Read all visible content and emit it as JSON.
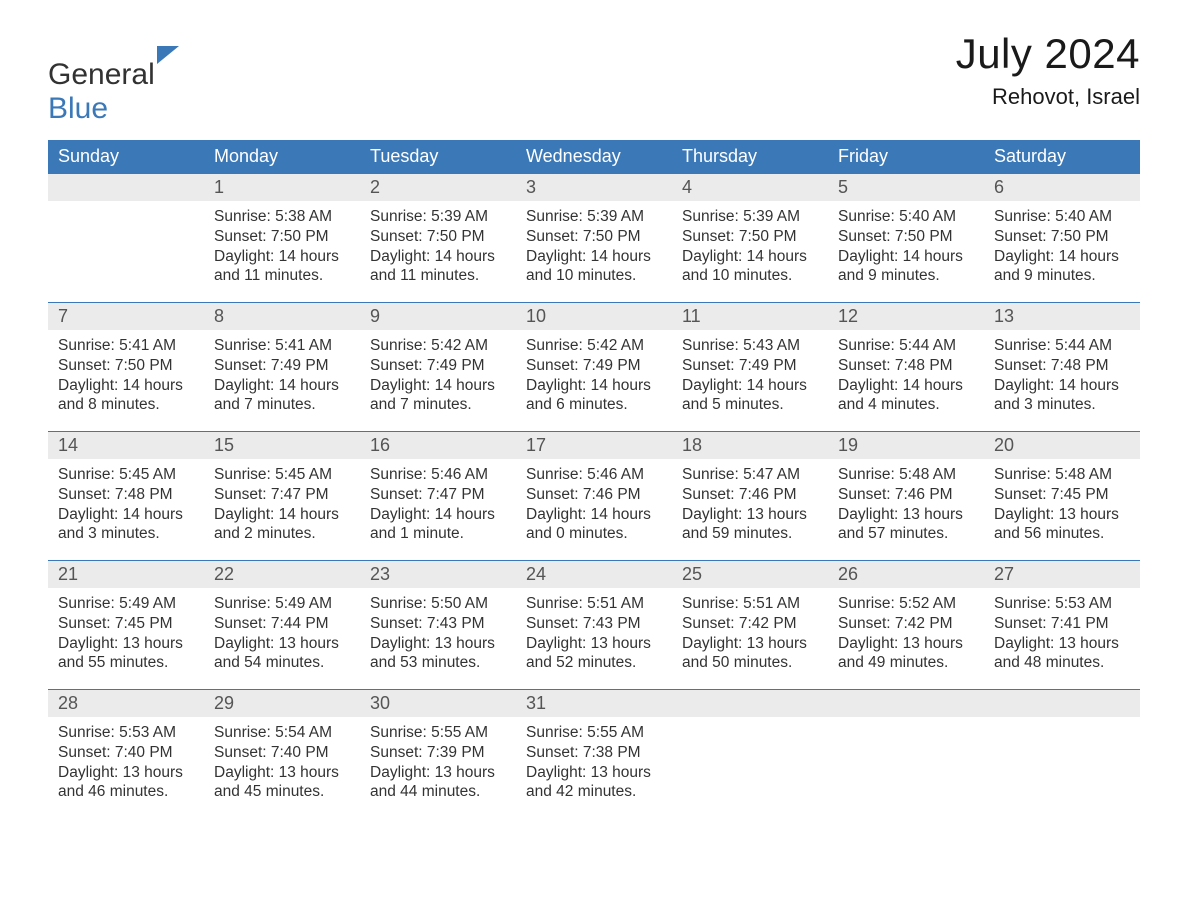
{
  "brand": {
    "text1": "General",
    "text2": "Blue"
  },
  "title": "July 2024",
  "location": "Rehovot, Israel",
  "colors": {
    "header_bg": "#3b78b8",
    "header_fg": "#ffffff",
    "daynum_bg": "#ebebeb",
    "daynum_fg": "#555555",
    "body_fg": "#333333",
    "rule": "#3b78b8",
    "page_bg": "#ffffff"
  },
  "weekdays": [
    "Sunday",
    "Monday",
    "Tuesday",
    "Wednesday",
    "Thursday",
    "Friday",
    "Saturday"
  ],
  "weeks": [
    [
      {
        "num": "",
        "sunrise": "",
        "sunset": "",
        "daylight1": "",
        "daylight2": ""
      },
      {
        "num": "1",
        "sunrise": "Sunrise: 5:38 AM",
        "sunset": "Sunset: 7:50 PM",
        "daylight1": "Daylight: 14 hours",
        "daylight2": "and 11 minutes."
      },
      {
        "num": "2",
        "sunrise": "Sunrise: 5:39 AM",
        "sunset": "Sunset: 7:50 PM",
        "daylight1": "Daylight: 14 hours",
        "daylight2": "and 11 minutes."
      },
      {
        "num": "3",
        "sunrise": "Sunrise: 5:39 AM",
        "sunset": "Sunset: 7:50 PM",
        "daylight1": "Daylight: 14 hours",
        "daylight2": "and 10 minutes."
      },
      {
        "num": "4",
        "sunrise": "Sunrise: 5:39 AM",
        "sunset": "Sunset: 7:50 PM",
        "daylight1": "Daylight: 14 hours",
        "daylight2": "and 10 minutes."
      },
      {
        "num": "5",
        "sunrise": "Sunrise: 5:40 AM",
        "sunset": "Sunset: 7:50 PM",
        "daylight1": "Daylight: 14 hours",
        "daylight2": "and 9 minutes."
      },
      {
        "num": "6",
        "sunrise": "Sunrise: 5:40 AM",
        "sunset": "Sunset: 7:50 PM",
        "daylight1": "Daylight: 14 hours",
        "daylight2": "and 9 minutes."
      }
    ],
    [
      {
        "num": "7",
        "sunrise": "Sunrise: 5:41 AM",
        "sunset": "Sunset: 7:50 PM",
        "daylight1": "Daylight: 14 hours",
        "daylight2": "and 8 minutes."
      },
      {
        "num": "8",
        "sunrise": "Sunrise: 5:41 AM",
        "sunset": "Sunset: 7:49 PM",
        "daylight1": "Daylight: 14 hours",
        "daylight2": "and 7 minutes."
      },
      {
        "num": "9",
        "sunrise": "Sunrise: 5:42 AM",
        "sunset": "Sunset: 7:49 PM",
        "daylight1": "Daylight: 14 hours",
        "daylight2": "and 7 minutes."
      },
      {
        "num": "10",
        "sunrise": "Sunrise: 5:42 AM",
        "sunset": "Sunset: 7:49 PM",
        "daylight1": "Daylight: 14 hours",
        "daylight2": "and 6 minutes."
      },
      {
        "num": "11",
        "sunrise": "Sunrise: 5:43 AM",
        "sunset": "Sunset: 7:49 PM",
        "daylight1": "Daylight: 14 hours",
        "daylight2": "and 5 minutes."
      },
      {
        "num": "12",
        "sunrise": "Sunrise: 5:44 AM",
        "sunset": "Sunset: 7:48 PM",
        "daylight1": "Daylight: 14 hours",
        "daylight2": "and 4 minutes."
      },
      {
        "num": "13",
        "sunrise": "Sunrise: 5:44 AM",
        "sunset": "Sunset: 7:48 PM",
        "daylight1": "Daylight: 14 hours",
        "daylight2": "and 3 minutes."
      }
    ],
    [
      {
        "num": "14",
        "sunrise": "Sunrise: 5:45 AM",
        "sunset": "Sunset: 7:48 PM",
        "daylight1": "Daylight: 14 hours",
        "daylight2": "and 3 minutes."
      },
      {
        "num": "15",
        "sunrise": "Sunrise: 5:45 AM",
        "sunset": "Sunset: 7:47 PM",
        "daylight1": "Daylight: 14 hours",
        "daylight2": "and 2 minutes."
      },
      {
        "num": "16",
        "sunrise": "Sunrise: 5:46 AM",
        "sunset": "Sunset: 7:47 PM",
        "daylight1": "Daylight: 14 hours",
        "daylight2": "and 1 minute."
      },
      {
        "num": "17",
        "sunrise": "Sunrise: 5:46 AM",
        "sunset": "Sunset: 7:46 PM",
        "daylight1": "Daylight: 14 hours",
        "daylight2": "and 0 minutes."
      },
      {
        "num": "18",
        "sunrise": "Sunrise: 5:47 AM",
        "sunset": "Sunset: 7:46 PM",
        "daylight1": "Daylight: 13 hours",
        "daylight2": "and 59 minutes."
      },
      {
        "num": "19",
        "sunrise": "Sunrise: 5:48 AM",
        "sunset": "Sunset: 7:46 PM",
        "daylight1": "Daylight: 13 hours",
        "daylight2": "and 57 minutes."
      },
      {
        "num": "20",
        "sunrise": "Sunrise: 5:48 AM",
        "sunset": "Sunset: 7:45 PM",
        "daylight1": "Daylight: 13 hours",
        "daylight2": "and 56 minutes."
      }
    ],
    [
      {
        "num": "21",
        "sunrise": "Sunrise: 5:49 AM",
        "sunset": "Sunset: 7:45 PM",
        "daylight1": "Daylight: 13 hours",
        "daylight2": "and 55 minutes."
      },
      {
        "num": "22",
        "sunrise": "Sunrise: 5:49 AM",
        "sunset": "Sunset: 7:44 PM",
        "daylight1": "Daylight: 13 hours",
        "daylight2": "and 54 minutes."
      },
      {
        "num": "23",
        "sunrise": "Sunrise: 5:50 AM",
        "sunset": "Sunset: 7:43 PM",
        "daylight1": "Daylight: 13 hours",
        "daylight2": "and 53 minutes."
      },
      {
        "num": "24",
        "sunrise": "Sunrise: 5:51 AM",
        "sunset": "Sunset: 7:43 PM",
        "daylight1": "Daylight: 13 hours",
        "daylight2": "and 52 minutes."
      },
      {
        "num": "25",
        "sunrise": "Sunrise: 5:51 AM",
        "sunset": "Sunset: 7:42 PM",
        "daylight1": "Daylight: 13 hours",
        "daylight2": "and 50 minutes."
      },
      {
        "num": "26",
        "sunrise": "Sunrise: 5:52 AM",
        "sunset": "Sunset: 7:42 PM",
        "daylight1": "Daylight: 13 hours",
        "daylight2": "and 49 minutes."
      },
      {
        "num": "27",
        "sunrise": "Sunrise: 5:53 AM",
        "sunset": "Sunset: 7:41 PM",
        "daylight1": "Daylight: 13 hours",
        "daylight2": "and 48 minutes."
      }
    ],
    [
      {
        "num": "28",
        "sunrise": "Sunrise: 5:53 AM",
        "sunset": "Sunset: 7:40 PM",
        "daylight1": "Daylight: 13 hours",
        "daylight2": "and 46 minutes."
      },
      {
        "num": "29",
        "sunrise": "Sunrise: 5:54 AM",
        "sunset": "Sunset: 7:40 PM",
        "daylight1": "Daylight: 13 hours",
        "daylight2": "and 45 minutes."
      },
      {
        "num": "30",
        "sunrise": "Sunrise: 5:55 AM",
        "sunset": "Sunset: 7:39 PM",
        "daylight1": "Daylight: 13 hours",
        "daylight2": "and 44 minutes."
      },
      {
        "num": "31",
        "sunrise": "Sunrise: 5:55 AM",
        "sunset": "Sunset: 7:38 PM",
        "daylight1": "Daylight: 13 hours",
        "daylight2": "and 42 minutes."
      },
      {
        "num": "",
        "sunrise": "",
        "sunset": "",
        "daylight1": "",
        "daylight2": ""
      },
      {
        "num": "",
        "sunrise": "",
        "sunset": "",
        "daylight1": "",
        "daylight2": ""
      },
      {
        "num": "",
        "sunrise": "",
        "sunset": "",
        "daylight1": "",
        "daylight2": ""
      }
    ]
  ]
}
